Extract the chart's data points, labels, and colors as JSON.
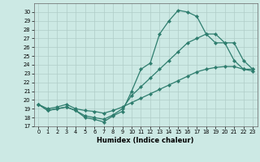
{
  "title": "",
  "xlabel": "Humidex (Indice chaleur)",
  "bg_color": "#cce9e4",
  "grid_color": "#b0cdc8",
  "line_color": "#2e7d6e",
  "xlim": [
    -0.5,
    23.5
  ],
  "ylim": [
    17,
    31
  ],
  "yticks": [
    17,
    18,
    19,
    20,
    21,
    22,
    23,
    24,
    25,
    26,
    27,
    28,
    29,
    30
  ],
  "xticks": [
    0,
    1,
    2,
    3,
    4,
    5,
    6,
    7,
    8,
    9,
    10,
    11,
    12,
    13,
    14,
    15,
    16,
    17,
    18,
    19,
    20,
    21,
    22,
    23
  ],
  "series1_x": [
    0,
    1,
    2,
    3,
    4,
    5,
    6,
    7,
    8,
    9,
    10,
    11,
    12,
    13,
    14,
    15,
    16,
    17,
    18,
    19,
    20,
    21,
    22,
    23
  ],
  "series1_y": [
    19.5,
    18.8,
    19.0,
    19.2,
    18.8,
    18.0,
    17.8,
    17.5,
    18.2,
    18.7,
    21.0,
    23.5,
    24.2,
    27.5,
    29.0,
    30.2,
    30.0,
    29.5,
    27.5,
    27.5,
    26.5,
    24.5,
    23.5,
    23.5
  ],
  "series2_x": [
    0,
    1,
    2,
    3,
    4,
    5,
    6,
    7,
    8,
    9,
    10,
    11,
    12,
    13,
    14,
    15,
    16,
    17,
    18,
    19,
    20,
    21,
    22,
    23
  ],
  "series2_y": [
    19.5,
    18.8,
    19.0,
    19.2,
    18.8,
    18.2,
    18.0,
    17.8,
    18.3,
    19.0,
    20.5,
    21.5,
    22.5,
    23.5,
    24.5,
    25.5,
    26.5,
    27.0,
    27.5,
    26.5,
    26.5,
    26.5,
    24.5,
    23.5
  ],
  "series3_x": [
    0,
    1,
    2,
    3,
    4,
    5,
    6,
    7,
    8,
    9,
    10,
    11,
    12,
    13,
    14,
    15,
    16,
    17,
    18,
    19,
    20,
    21,
    22,
    23
  ],
  "series3_y": [
    19.5,
    19.0,
    19.2,
    19.5,
    19.0,
    18.8,
    18.7,
    18.5,
    18.8,
    19.2,
    19.7,
    20.2,
    20.7,
    21.2,
    21.7,
    22.2,
    22.7,
    23.2,
    23.5,
    23.7,
    23.8,
    23.8,
    23.5,
    23.3
  ]
}
